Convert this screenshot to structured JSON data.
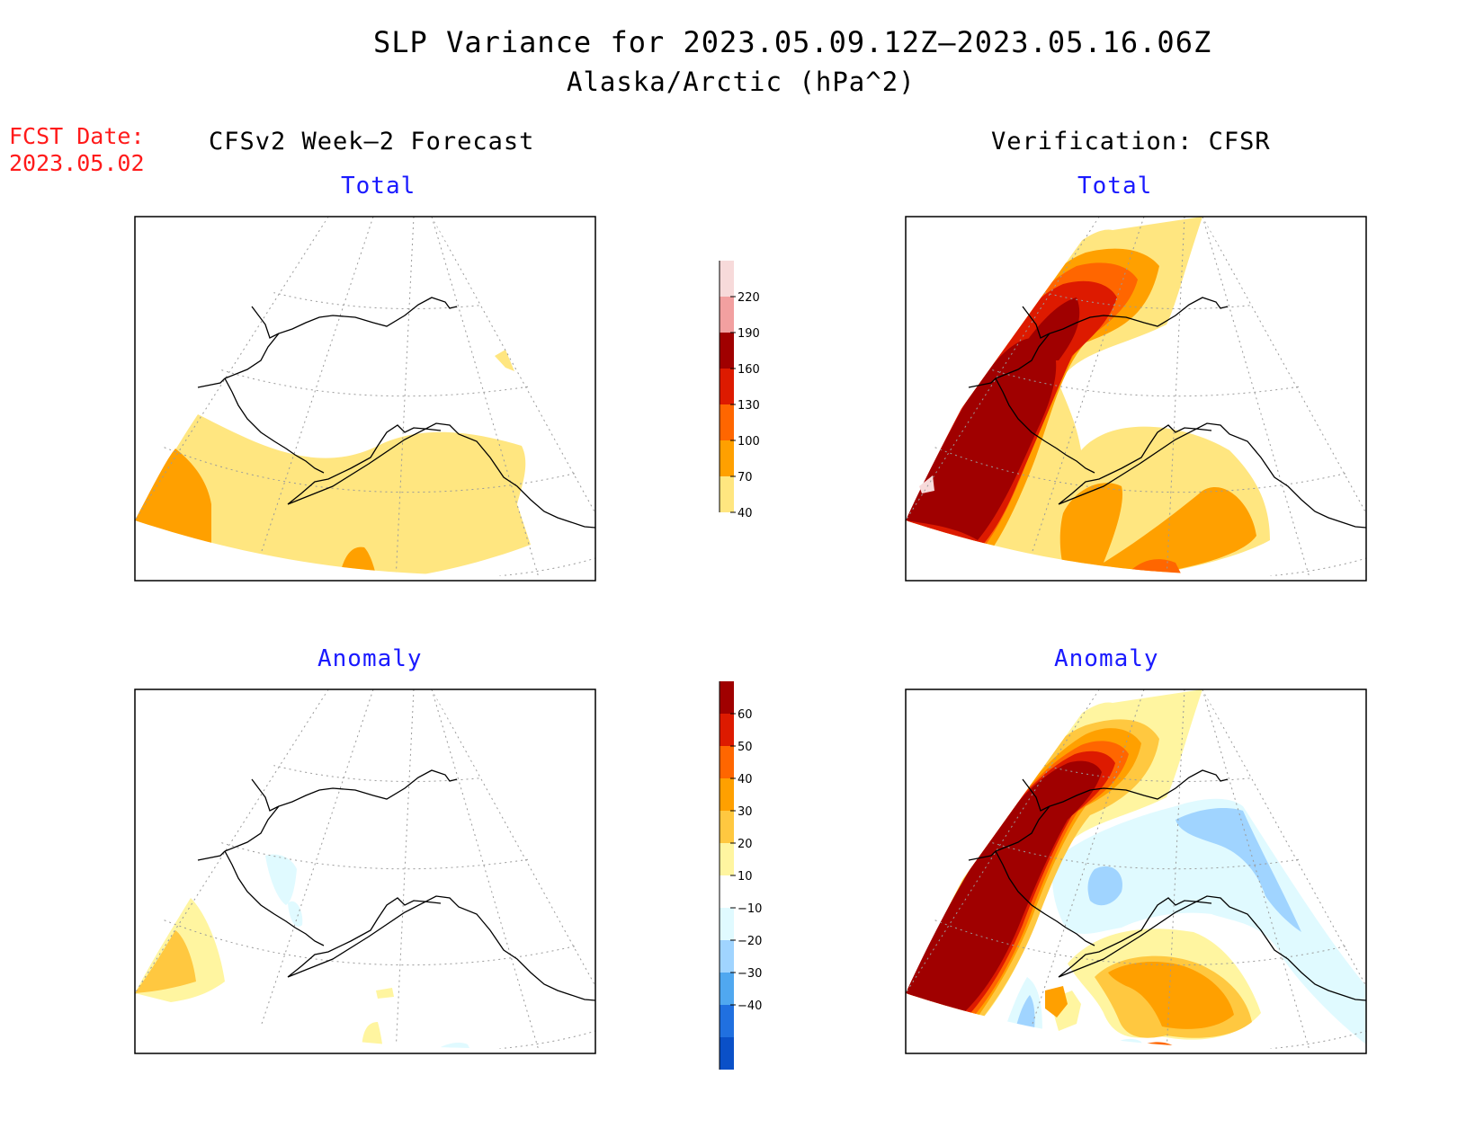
{
  "title": "SLP Variance for 2023.05.09.12Z–2023.05.16.06Z",
  "subtitle": "Alaska/Arctic (hPa^2)",
  "fcst_date_label": "FCST Date:",
  "fcst_date_value": "2023.05.02",
  "forecast_heading": "CFSv2 Week–2 Forecast",
  "verification_heading": "Verification: CFSR",
  "panels": {
    "fcst_total": "Total",
    "verif_total": "Total",
    "fcst_anom": "Anomaly",
    "verif_anom": "Anomaly"
  },
  "colorbar_total": {
    "labels": [
      "220",
      "190",
      "160",
      "130",
      "100",
      "70",
      "40"
    ],
    "colors": [
      "#f7dada",
      "#f2a0a0",
      "#a00000",
      "#dd1a00",
      "#ff6600",
      "#ffa000",
      "#ffe680"
    ]
  },
  "colorbar_anom": {
    "labels": [
      "60",
      "50",
      "40",
      "30",
      "20",
      "10",
      "−10",
      "−20",
      "−30",
      "−40"
    ],
    "colors": [
      "#a00000",
      "#dd1a00",
      "#ff6600",
      "#ffa000",
      "#ffc840",
      "#fff5a0",
      "#ffffff",
      "#e0faff",
      "#a0d4ff",
      "#50a8f0",
      "#2070e0",
      "#0a50c8"
    ]
  },
  "fill_colors": {
    "c40": "#ffe680",
    "c70": "#ffa000",
    "c100": "#ff6600",
    "c130": "#dd1a00",
    "c160": "#a00000",
    "c220": "#f7dada",
    "a10": "#fff5a0",
    "a20": "#ffc840",
    "a30": "#ffa000",
    "a40": "#ff6600",
    "a50": "#dd1a00",
    "a60": "#a00000",
    "n10": "#e0faff",
    "n20": "#a0d4ff"
  }
}
